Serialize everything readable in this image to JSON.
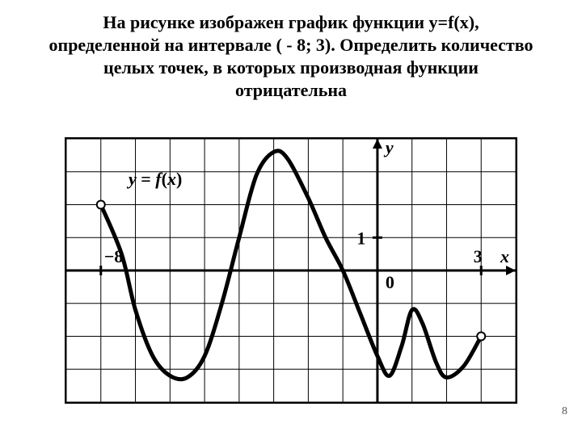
{
  "title": "На рисунке изображен график функции у=f(x), определенной на интервале ( - 8; 3).  Определить количество целых точек, в которых производная функции отрицательна",
  "page_number": "8",
  "plot": {
    "type": "line",
    "background_color": "#ffffff",
    "border_color": "#000000",
    "grid_color": "#000000",
    "grid_linewidth": 1,
    "xlim": [
      -9,
      4
    ],
    "ylim": [
      -4,
      4
    ],
    "x_cells": 13,
    "y_cells": 8,
    "axes": {
      "x_axis_y": 0,
      "y_axis_x": 0,
      "arrow_size": 8,
      "linewidth": 3
    },
    "labels": {
      "y_label": "у",
      "x_label": "х",
      "origin_label": "0",
      "one_label": "1",
      "neg8_label": "−8",
      "three_label": "3",
      "formula": "y = f(x)",
      "label_fontsize": 22,
      "label_fontweight": "bold",
      "italic": true
    },
    "curve": {
      "stroke": "#000000",
      "linewidth": 5,
      "open_marker_radius": 5,
      "open_marker_fill": "#ffffff",
      "open_marker_stroke": "#000000",
      "open_marker_stroke_width": 2,
      "start": {
        "x": -8,
        "y": 2
      },
      "end": {
        "x": 3,
        "y": -2
      },
      "points": [
        {
          "x": -8.0,
          "y": 2.0
        },
        {
          "x": -7.4,
          "y": 0.5
        },
        {
          "x": -7.0,
          "y": -1.2
        },
        {
          "x": -6.5,
          "y": -2.6
        },
        {
          "x": -6.0,
          "y": -3.2
        },
        {
          "x": -5.5,
          "y": -3.25
        },
        {
          "x": -5.0,
          "y": -2.6
        },
        {
          "x": -4.5,
          "y": -1.0
        },
        {
          "x": -4.0,
          "y": 1.0
        },
        {
          "x": -3.5,
          "y": 2.9
        },
        {
          "x": -3.0,
          "y": 3.6
        },
        {
          "x": -2.6,
          "y": 3.4
        },
        {
          "x": -2.0,
          "y": 2.2
        },
        {
          "x": -1.5,
          "y": 1.0
        },
        {
          "x": -1.0,
          "y": 0.0
        },
        {
          "x": -0.5,
          "y": -1.3
        },
        {
          "x": 0.0,
          "y": -2.6
        },
        {
          "x": 0.35,
          "y": -3.2
        },
        {
          "x": 0.7,
          "y": -2.3
        },
        {
          "x": 1.0,
          "y": -1.2
        },
        {
          "x": 1.3,
          "y": -1.6
        },
        {
          "x": 1.7,
          "y": -2.8
        },
        {
          "x": 2.0,
          "y": -3.25
        },
        {
          "x": 2.5,
          "y": -2.9
        },
        {
          "x": 3.0,
          "y": -2.0
        }
      ],
      "axis_cross_ticks": [
        {
          "x": -8,
          "y": 0
        },
        {
          "x": 3,
          "y": 0
        }
      ]
    }
  }
}
